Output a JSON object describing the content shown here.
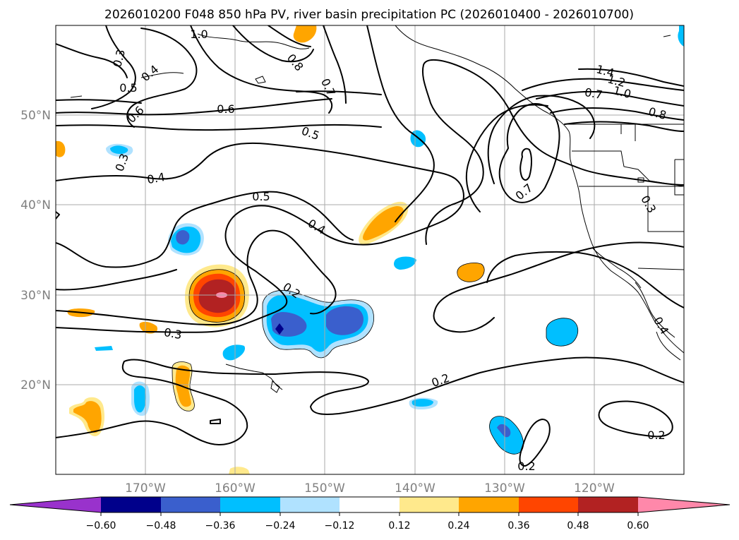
{
  "title": "2026010200 F048 850 hPa PV, river basin precipitation PC (2026010400 - 2026010700)",
  "lat_labels": [
    "50°N",
    "40°N",
    "30°N",
    "20°N"
  ],
  "lon_labels": [
    "170°W",
    "160°W",
    "150°W",
    "140°W",
    "130°W",
    "120°W"
  ],
  "colorbar": {
    "ticks": [
      "−0.60",
      "−0.48",
      "−0.36",
      "−0.24",
      "−0.12",
      "0.12",
      "0.24",
      "0.36",
      "0.48",
      "0.60"
    ],
    "colors": [
      "#9932cc",
      "#00008b",
      "#3a5fcd",
      "#00bfff",
      "#b0e2ff",
      "#ffffff",
      "#ffe98c",
      "#ffa500",
      "#ff4500",
      "#b22222",
      "#ff88aa"
    ]
  },
  "contour_labels": [
    "1.0",
    "0.3",
    "0.4",
    "0.5",
    "0.6",
    "0.3",
    "0.4",
    "0.5",
    "0.4",
    "0.2",
    "0.3",
    "0.2",
    "0.2",
    "0.2",
    "0.5",
    "0.6",
    "0.7",
    "0.8",
    "0.7",
    "1.4",
    "1.2",
    "1.0",
    "0.7",
    "0.8",
    "0.3",
    "0.4"
  ]
}
